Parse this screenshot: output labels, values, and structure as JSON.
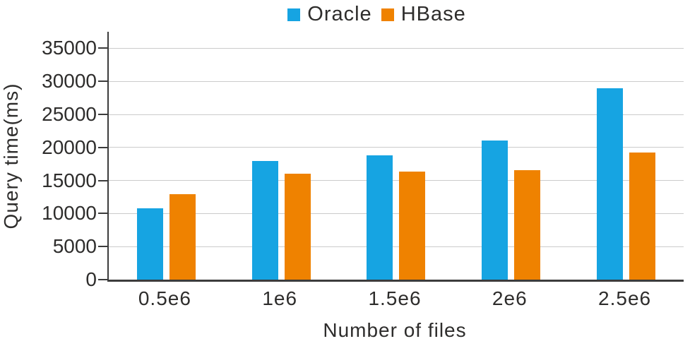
{
  "chart_data": {
    "type": "bar",
    "title": "",
    "categories": [
      "0.5e6",
      "1e6",
      "1.5e6",
      "2e6",
      "2.5e6"
    ],
    "series": [
      {
        "name": "Oracle",
        "color": "#16a4e2",
        "values": [
          10800,
          17900,
          18800,
          21100,
          29000
        ]
      },
      {
        "name": "HBase",
        "color": "#ef8200",
        "values": [
          12900,
          16000,
          16300,
          16600,
          19200
        ]
      }
    ],
    "xlabel": "Number of files",
    "ylabel": "Query time(ms)",
    "ylim": [
      0,
      37500
    ],
    "yticks": [
      0,
      5000,
      10000,
      15000,
      20000,
      25000,
      30000,
      35000
    ],
    "grid": true,
    "legend_position": "top",
    "axis_color": "#3c3c3c",
    "gridline_color": "#cbcbcb",
    "text_color": "#2e2d2c"
  }
}
